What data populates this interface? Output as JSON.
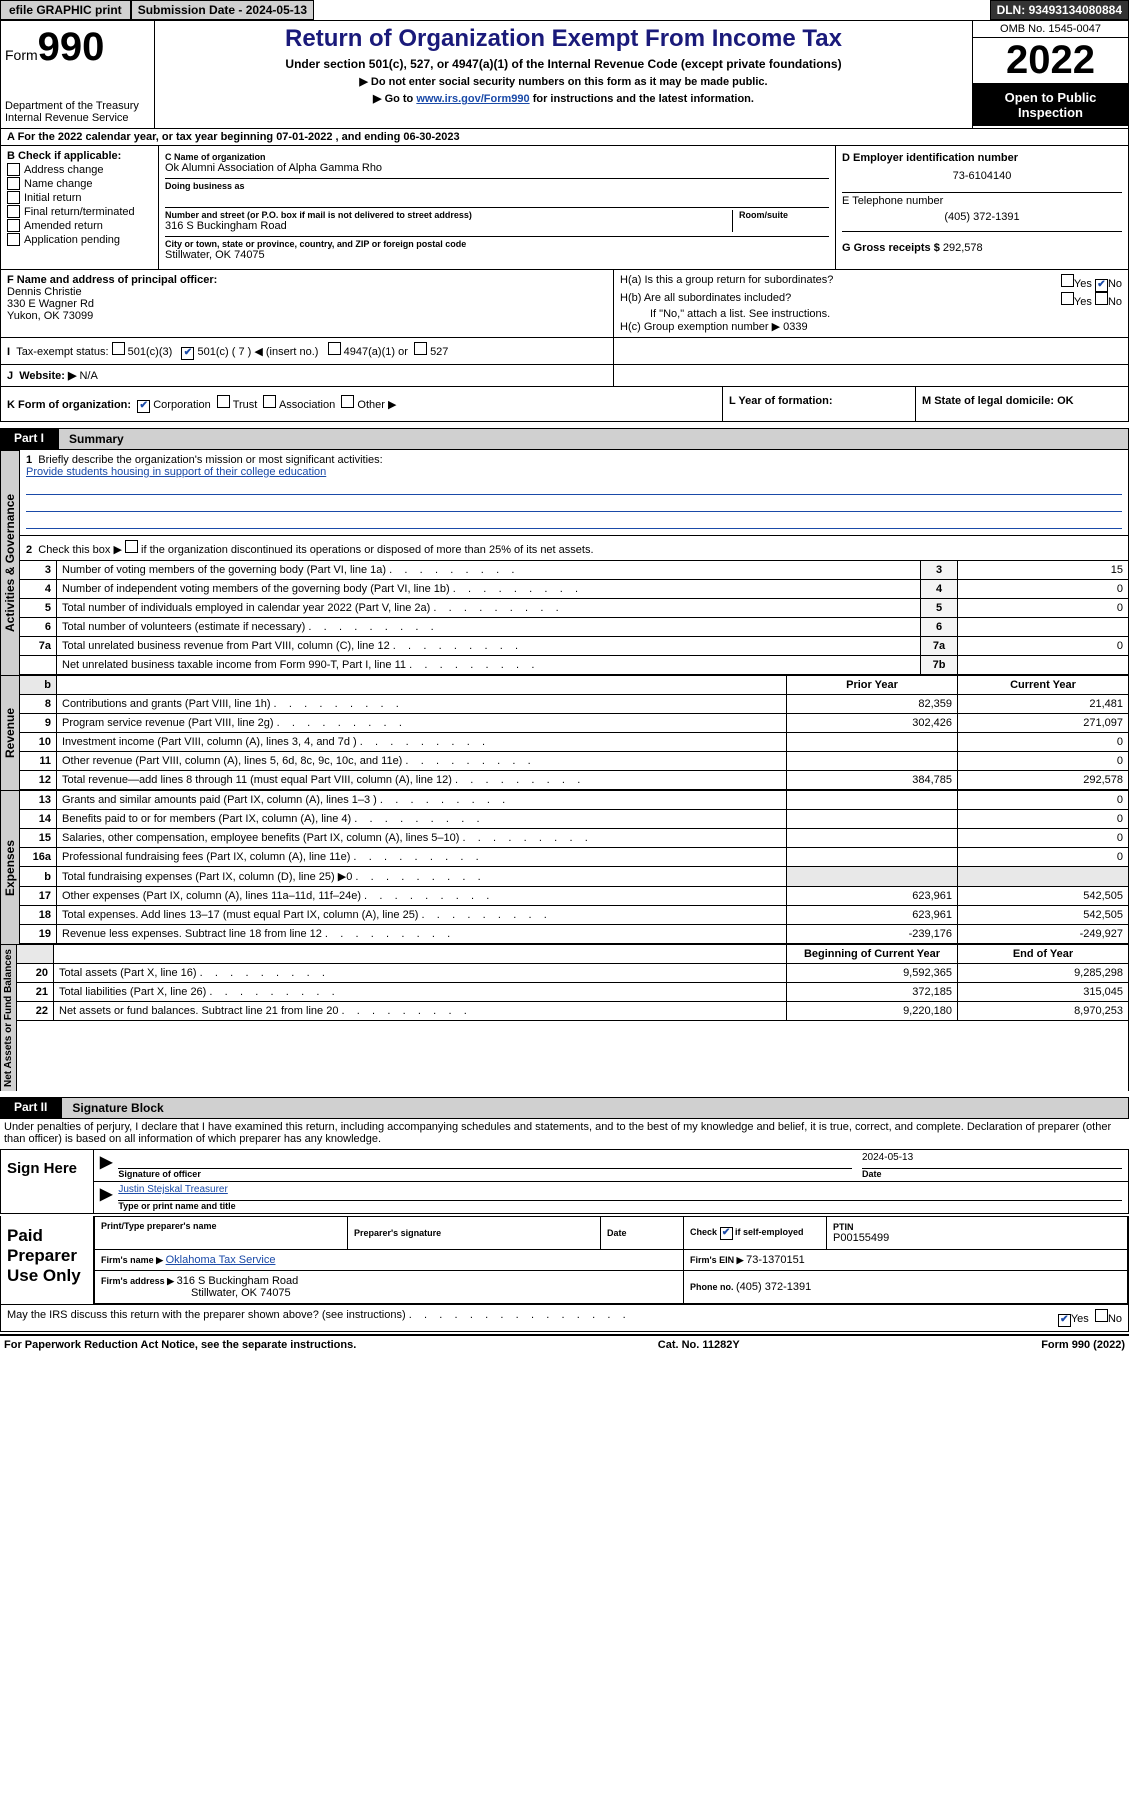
{
  "topbar": {
    "efile": "efile GRAPHIC print",
    "subdate_lbl": "Submission Date - ",
    "subdate": "2024-05-13",
    "dln_lbl": "DLN: ",
    "dln": "93493134080884"
  },
  "header": {
    "form_word": "Form",
    "form_num": "990",
    "dept": "Department of the Treasury",
    "irs": "Internal Revenue Service",
    "title": "Return of Organization Exempt From Income Tax",
    "sub1": "Under section 501(c), 527, or 4947(a)(1) of the Internal Revenue Code (except private foundations)",
    "sub2": "▶ Do not enter social security numbers on this form as it may be made public.",
    "sub3a": "▶ Go to ",
    "sub3_link": "www.irs.gov/Form990",
    "sub3b": " for instructions and the latest information.",
    "omb": "OMB No. 1545-0047",
    "year": "2022",
    "opi": "Open to Public Inspection"
  },
  "rowA": "A For the 2022 calendar year, or tax year beginning 07-01-2022   , and ending 06-30-2023",
  "colB": {
    "hdr": "B Check if applicable:",
    "items": [
      "Address change",
      "Name change",
      "Initial return",
      "Final return/terminated",
      "Amended return",
      "Application pending"
    ]
  },
  "colC": {
    "name_lbl": "C Name of organization",
    "name": "Ok Alumni Association of Alpha Gamma Rho",
    "dba_lbl": "Doing business as",
    "addr_lbl": "Number and street (or P.O. box if mail is not delivered to street address)",
    "room_lbl": "Room/suite",
    "addr": "316 S Buckingham Road",
    "city_lbl": "City or town, state or province, country, and ZIP or foreign postal code",
    "city": "Stillwater, OK  74075"
  },
  "colD": {
    "ein_lbl": "D Employer identification number",
    "ein": "73-6104140",
    "tel_lbl": "E Telephone number",
    "tel": "(405) 372-1391",
    "gross_lbl": "G Gross receipts $ ",
    "gross": "292,578"
  },
  "rowF": {
    "lbl": "F  Name and address of principal officer:",
    "name": "Dennis Christie",
    "addr1": "330 E Wagner Rd",
    "addr2": "Yukon, OK  73099"
  },
  "rowH": {
    "a": "H(a)  Is this a group return for subordinates?",
    "b": "H(b)  Are all subordinates included?",
    "bnote": "If \"No,\" attach a list. See instructions.",
    "c": "H(c)  Group exemption number ▶   0339",
    "yes": "Yes",
    "no": "No"
  },
  "rowI": {
    "lbl": "Tax-exempt status:",
    "o1": "501(c)(3)",
    "o2": "501(c) ( 7 ) ◀ (insert no.)",
    "o3": "4947(a)(1) or",
    "o4": "527"
  },
  "rowJ": {
    "lbl": "Website: ▶",
    "val": "N/A"
  },
  "rowK": {
    "k": "K Form of organization:",
    "opts": [
      "Corporation",
      "Trust",
      "Association",
      "Other ▶"
    ],
    "l": "L Year of formation:",
    "m": "M State of legal domicile: OK"
  },
  "part1": {
    "tab": "Part I",
    "title": "Summary",
    "vtab1": "Activities & Governance",
    "vtab2": "Revenue",
    "vtab3": "Expenses",
    "vtab4": "Net Assets or Fund Balances",
    "l1a": "Briefly describe the organization's mission or most significant activities:",
    "l1b": "Provide students housing in support of their college education",
    "l2": "Check this box ▶       if the organization discontinued its operations or disposed of more than 25% of its net assets.",
    "rows_gov": [
      {
        "n": "3",
        "t": "Number of voting members of the governing body (Part VI, line 1a)",
        "b": "3",
        "v": "15"
      },
      {
        "n": "4",
        "t": "Number of independent voting members of the governing body (Part VI, line 1b)",
        "b": "4",
        "v": "0"
      },
      {
        "n": "5",
        "t": "Total number of individuals employed in calendar year 2022 (Part V, line 2a)",
        "b": "5",
        "v": "0"
      },
      {
        "n": "6",
        "t": "Total number of volunteers (estimate if necessary)",
        "b": "6",
        "v": ""
      },
      {
        "n": "7a",
        "t": "Total unrelated business revenue from Part VIII, column (C), line 12",
        "b": "7a",
        "v": "0"
      },
      {
        "n": "",
        "t": "Net unrelated business taxable income from Form 990-T, Part I, line 11",
        "b": "7b",
        "v": ""
      }
    ],
    "hdr_prior": "Prior Year",
    "hdr_curr": "Current Year",
    "rows_rev": [
      {
        "n": "8",
        "t": "Contributions and grants (Part VIII, line 1h)",
        "p": "82,359",
        "c": "21,481"
      },
      {
        "n": "9",
        "t": "Program service revenue (Part VIII, line 2g)",
        "p": "302,426",
        "c": "271,097"
      },
      {
        "n": "10",
        "t": "Investment income (Part VIII, column (A), lines 3, 4, and 7d )",
        "p": "",
        "c": "0"
      },
      {
        "n": "11",
        "t": "Other revenue (Part VIII, column (A), lines 5, 6d, 8c, 9c, 10c, and 11e)",
        "p": "",
        "c": "0"
      },
      {
        "n": "12",
        "t": "Total revenue—add lines 8 through 11 (must equal Part VIII, column (A), line 12)",
        "p": "384,785",
        "c": "292,578"
      }
    ],
    "rows_exp": [
      {
        "n": "13",
        "t": "Grants and similar amounts paid (Part IX, column (A), lines 1–3 )",
        "p": "",
        "c": "0"
      },
      {
        "n": "14",
        "t": "Benefits paid to or for members (Part IX, column (A), line 4)",
        "p": "",
        "c": "0"
      },
      {
        "n": "15",
        "t": "Salaries, other compensation, employee benefits (Part IX, column (A), lines 5–10)",
        "p": "",
        "c": "0"
      },
      {
        "n": "16a",
        "t": "Professional fundraising fees (Part IX, column (A), line 11e)",
        "p": "",
        "c": "0"
      },
      {
        "n": "b",
        "t": "Total fundraising expenses (Part IX, column (D), line 25) ▶0",
        "p": "SHADE",
        "c": "SHADE"
      },
      {
        "n": "17",
        "t": "Other expenses (Part IX, column (A), lines 11a–11d, 11f–24e)",
        "p": "623,961",
        "c": "542,505"
      },
      {
        "n": "18",
        "t": "Total expenses. Add lines 13–17 (must equal Part IX, column (A), line 25)",
        "p": "623,961",
        "c": "542,505"
      },
      {
        "n": "19",
        "t": "Revenue less expenses. Subtract line 18 from line 12",
        "p": "-239,176",
        "c": "-249,927"
      }
    ],
    "hdr_beg": "Beginning of Current Year",
    "hdr_end": "End of Year",
    "rows_net": [
      {
        "n": "20",
        "t": "Total assets (Part X, line 16)",
        "p": "9,592,365",
        "c": "9,285,298"
      },
      {
        "n": "21",
        "t": "Total liabilities (Part X, line 26)",
        "p": "372,185",
        "c": "315,045"
      },
      {
        "n": "22",
        "t": "Net assets or fund balances. Subtract line 21 from line 20",
        "p": "9,220,180",
        "c": "8,970,253"
      }
    ]
  },
  "part2": {
    "tab": "Part II",
    "title": "Signature Block",
    "decl": "Under penalties of perjury, I declare that I have examined this return, including accompanying schedules and statements, and to the best of my knowledge and belief, it is true, correct, and complete. Declaration of preparer (other than officer) is based on all information of which preparer has any knowledge.",
    "sign_here": "Sign Here",
    "sig_officer": "Signature of officer",
    "sig_date": "Date",
    "sig_date_v": "2024-05-13",
    "sig_name": "Justin Stejskal Treasurer",
    "sig_name_lbl": "Type or print name and title",
    "paid": "Paid Preparer Use Only",
    "pp_name_lbl": "Print/Type preparer's name",
    "pp_sig_lbl": "Preparer's signature",
    "pp_date_lbl": "Date",
    "pp_check": "Check        if self-employed",
    "pp_ptin_lbl": "PTIN",
    "pp_ptin": "P00155499",
    "firm_name_lbl": "Firm's name     ▶ ",
    "firm_name": "Oklahoma Tax Service",
    "firm_ein_lbl": "Firm's EIN ▶ ",
    "firm_ein": "73-1370151",
    "firm_addr_lbl": "Firm's address ▶ ",
    "firm_addr1": "316 S Buckingham Road",
    "firm_addr2": "Stillwater, OK  74075",
    "firm_phone_lbl": "Phone no. ",
    "firm_phone": "(405) 372-1391",
    "may": "May the IRS discuss this return with the preparer shown above? (see instructions)",
    "yes": "Yes",
    "no": "No"
  },
  "footer": {
    "l": "For Paperwork Reduction Act Notice, see the separate instructions.",
    "m": "Cat. No. 11282Y",
    "r": "Form 990 (2022)"
  }
}
